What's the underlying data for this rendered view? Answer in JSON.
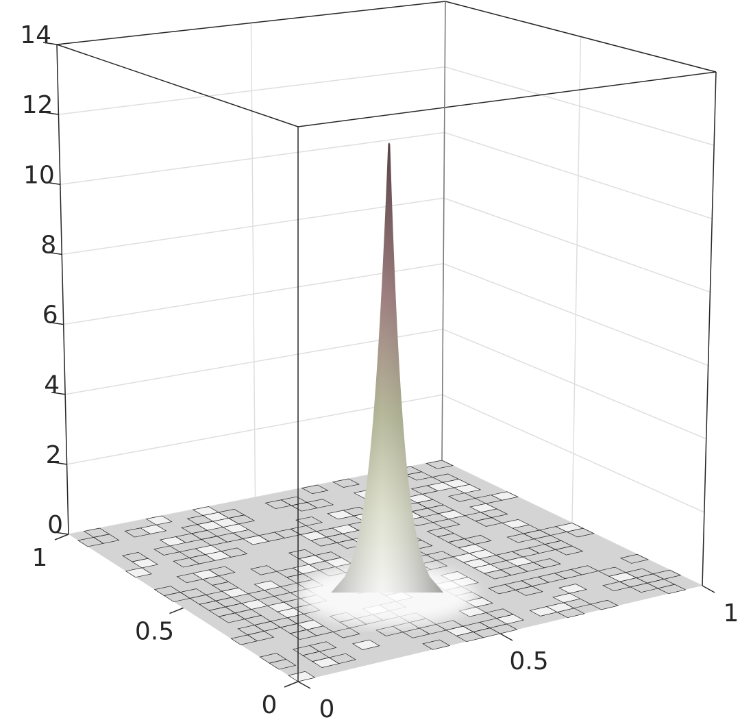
{
  "chart_data": {
    "type": "surface3d",
    "xlim": [
      0,
      1
    ],
    "xticks": [
      0,
      0.5,
      1
    ],
    "ylim": [
      0,
      1
    ],
    "yticks": [
      0,
      0.5,
      1
    ],
    "zlim": [
      0,
      14
    ],
    "zticks": [
      0,
      2,
      4,
      6,
      8,
      10,
      12,
      14
    ],
    "grid": true,
    "peak": {
      "x": 0.4,
      "y": 0.3,
      "z": 12.3
    }
  }
}
